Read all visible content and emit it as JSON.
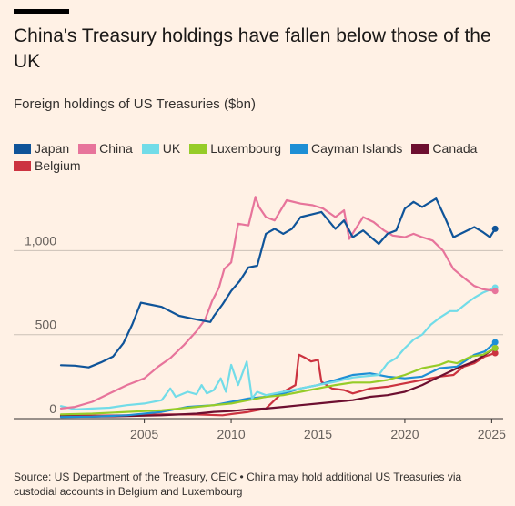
{
  "header": {
    "title": "China's Treasury holdings have fallen below those of the UK",
    "subtitle": "Foreign holdings of US Treasuries ($bn)"
  },
  "footer": {
    "source": "Source: US Department of the Treasury, CEIC • China may hold additional US Treasuries via custodial accounts in Belgium and Luxembourg"
  },
  "chart_data": {
    "type": "line",
    "title": "China's Treasury holdings have fallen below those of the UK",
    "subtitle": "Foreign holdings of US Treasuries ($bn)",
    "xlabel": "",
    "ylabel": "",
    "xlim": [
      2000.2,
      2025.4
    ],
    "ylim": [
      0,
      1300
    ],
    "xticks": [
      2005,
      2010,
      2015,
      2020,
      2025
    ],
    "yticks": [
      0,
      500,
      1000
    ],
    "ytick_labels": [
      "0",
      "500",
      "1,000"
    ],
    "grid": "horizontal",
    "legend_position": "top",
    "series": [
      {
        "name": "Japan",
        "color": "#0f5499",
        "points": [
          [
            2000.2,
            318
          ],
          [
            2001.0,
            315
          ],
          [
            2001.8,
            305
          ],
          [
            2002.5,
            335
          ],
          [
            2003.2,
            370
          ],
          [
            2003.8,
            450
          ],
          [
            2004.3,
            560
          ],
          [
            2004.8,
            690
          ],
          [
            2005.3,
            680
          ],
          [
            2006.0,
            665
          ],
          [
            2007.0,
            612
          ],
          [
            2008.0,
            590
          ],
          [
            2008.8,
            575
          ],
          [
            2009.0,
            610
          ],
          [
            2009.5,
            680
          ],
          [
            2010.0,
            760
          ],
          [
            2010.5,
            820
          ],
          [
            2011.0,
            900
          ],
          [
            2011.5,
            910
          ],
          [
            2012.0,
            1100
          ],
          [
            2012.5,
            1130
          ],
          [
            2013.0,
            1100
          ],
          [
            2013.5,
            1130
          ],
          [
            2014.0,
            1200
          ],
          [
            2014.8,
            1220
          ],
          [
            2015.2,
            1230
          ],
          [
            2016.0,
            1130
          ],
          [
            2016.5,
            1180
          ],
          [
            2017.0,
            1080
          ],
          [
            2017.6,
            1120
          ],
          [
            2018.5,
            1040
          ],
          [
            2019.0,
            1100
          ],
          [
            2019.5,
            1120
          ],
          [
            2020.0,
            1250
          ],
          [
            2020.5,
            1290
          ],
          [
            2021.0,
            1260
          ],
          [
            2021.8,
            1310
          ],
          [
            2022.3,
            1200
          ],
          [
            2022.8,
            1080
          ],
          [
            2023.4,
            1110
          ],
          [
            2024.0,
            1140
          ],
          [
            2024.5,
            1110
          ],
          [
            2024.9,
            1080
          ],
          [
            2025.2,
            1130
          ]
        ]
      },
      {
        "name": "China",
        "color": "#e7749b",
        "points": [
          [
            2000.2,
            60
          ],
          [
            2001.0,
            70
          ],
          [
            2002.0,
            100
          ],
          [
            2003.0,
            150
          ],
          [
            2004.0,
            200
          ],
          [
            2005.0,
            240
          ],
          [
            2005.8,
            310
          ],
          [
            2006.5,
            360
          ],
          [
            2007.3,
            440
          ],
          [
            2008.0,
            520
          ],
          [
            2008.5,
            590
          ],
          [
            2008.9,
            700
          ],
          [
            2009.3,
            780
          ],
          [
            2009.6,
            890
          ],
          [
            2010.0,
            930
          ],
          [
            2010.4,
            1160
          ],
          [
            2011.0,
            1150
          ],
          [
            2011.4,
            1320
          ],
          [
            2011.6,
            1260
          ],
          [
            2012.0,
            1200
          ],
          [
            2012.5,
            1180
          ],
          [
            2013.2,
            1300
          ],
          [
            2014.0,
            1280
          ],
          [
            2014.7,
            1270
          ],
          [
            2015.3,
            1250
          ],
          [
            2016.0,
            1200
          ],
          [
            2016.5,
            1240
          ],
          [
            2016.8,
            1070
          ],
          [
            2017.6,
            1200
          ],
          [
            2018.2,
            1170
          ],
          [
            2018.8,
            1120
          ],
          [
            2019.3,
            1090
          ],
          [
            2020.0,
            1080
          ],
          [
            2020.5,
            1100
          ],
          [
            2021.0,
            1080
          ],
          [
            2021.6,
            1060
          ],
          [
            2022.2,
            1000
          ],
          [
            2022.8,
            890
          ],
          [
            2023.5,
            830
          ],
          [
            2024.0,
            790
          ],
          [
            2024.5,
            770
          ],
          [
            2025.2,
            760
          ]
        ]
      },
      {
        "name": "UK",
        "color": "#72dce8",
        "points": [
          [
            2000.2,
            75
          ],
          [
            2001.0,
            55
          ],
          [
            2002.0,
            60
          ],
          [
            2003.0,
            65
          ],
          [
            2004.0,
            80
          ],
          [
            2005.0,
            90
          ],
          [
            2006.0,
            110
          ],
          [
            2006.5,
            180
          ],
          [
            2006.8,
            130
          ],
          [
            2007.5,
            160
          ],
          [
            2008.0,
            145
          ],
          [
            2008.3,
            200
          ],
          [
            2008.6,
            150
          ],
          [
            2009.0,
            170
          ],
          [
            2009.4,
            240
          ],
          [
            2009.7,
            160
          ],
          [
            2010.0,
            320
          ],
          [
            2010.4,
            200
          ],
          [
            2010.9,
            340
          ],
          [
            2011.2,
            120
          ],
          [
            2011.5,
            160
          ],
          [
            2012.0,
            140
          ],
          [
            2013.0,
            160
          ],
          [
            2014.0,
            180
          ],
          [
            2015.0,
            200
          ],
          [
            2016.0,
            220
          ],
          [
            2017.0,
            245
          ],
          [
            2017.5,
            250
          ],
          [
            2018.5,
            260
          ],
          [
            2019.0,
            330
          ],
          [
            2019.5,
            360
          ],
          [
            2020.0,
            420
          ],
          [
            2020.5,
            470
          ],
          [
            2021.0,
            500
          ],
          [
            2021.5,
            560
          ],
          [
            2022.0,
            600
          ],
          [
            2022.6,
            640
          ],
          [
            2023.0,
            640
          ],
          [
            2023.6,
            690
          ],
          [
            2024.0,
            720
          ],
          [
            2024.5,
            750
          ],
          [
            2025.2,
            780
          ]
        ]
      },
      {
        "name": "Luxembourg",
        "color": "#96cc28",
        "points": [
          [
            2000.2,
            25
          ],
          [
            2002.0,
            30
          ],
          [
            2004.0,
            40
          ],
          [
            2006.0,
            50
          ],
          [
            2008.0,
            70
          ],
          [
            2009.0,
            80
          ],
          [
            2010.0,
            90
          ],
          [
            2011.0,
            110
          ],
          [
            2012.0,
            130
          ],
          [
            2013.0,
            140
          ],
          [
            2014.0,
            160
          ],
          [
            2015.0,
            180
          ],
          [
            2016.0,
            200
          ],
          [
            2017.0,
            215
          ],
          [
            2018.0,
            215
          ],
          [
            2019.0,
            230
          ],
          [
            2020.0,
            260
          ],
          [
            2021.0,
            300
          ],
          [
            2022.0,
            320
          ],
          [
            2022.5,
            340
          ],
          [
            2023.0,
            330
          ],
          [
            2023.8,
            370
          ],
          [
            2024.5,
            380
          ],
          [
            2025.2,
            420
          ]
        ]
      },
      {
        "name": "Cayman Islands",
        "color": "#1e8fd5",
        "points": [
          [
            2000.2,
            10
          ],
          [
            2002.0,
            12
          ],
          [
            2004.0,
            20
          ],
          [
            2006.0,
            40
          ],
          [
            2007.5,
            70
          ],
          [
            2009.0,
            80
          ],
          [
            2010.0,
            100
          ],
          [
            2011.0,
            120
          ],
          [
            2012.0,
            130
          ],
          [
            2013.0,
            150
          ],
          [
            2014.0,
            180
          ],
          [
            2015.0,
            200
          ],
          [
            2016.0,
            230
          ],
          [
            2017.0,
            260
          ],
          [
            2018.0,
            270
          ],
          [
            2019.0,
            250
          ],
          [
            2020.0,
            240
          ],
          [
            2021.0,
            250
          ],
          [
            2022.0,
            300
          ],
          [
            2023.0,
            310
          ],
          [
            2024.0,
            380
          ],
          [
            2024.6,
            400
          ],
          [
            2025.2,
            455
          ]
        ]
      },
      {
        "name": "Canada",
        "color": "#6d0f30",
        "points": [
          [
            2000.2,
            15
          ],
          [
            2002.0,
            12
          ],
          [
            2004.0,
            15
          ],
          [
            2006.0,
            20
          ],
          [
            2008.0,
            30
          ],
          [
            2009.0,
            40
          ],
          [
            2010.0,
            45
          ],
          [
            2011.0,
            55
          ],
          [
            2012.0,
            60
          ],
          [
            2013.0,
            70
          ],
          [
            2014.0,
            80
          ],
          [
            2015.0,
            90
          ],
          [
            2016.0,
            100
          ],
          [
            2017.0,
            110
          ],
          [
            2018.0,
            130
          ],
          [
            2019.0,
            140
          ],
          [
            2020.0,
            160
          ],
          [
            2021.0,
            200
          ],
          [
            2022.0,
            250
          ],
          [
            2023.0,
            300
          ],
          [
            2024.0,
            340
          ],
          [
            2025.2,
            420
          ]
        ]
      },
      {
        "name": "Belgium",
        "color": "#cc3340",
        "points": [
          [
            2000.2,
            20
          ],
          [
            2002.0,
            18
          ],
          [
            2004.0,
            20
          ],
          [
            2006.0,
            25
          ],
          [
            2008.0,
            25
          ],
          [
            2009.5,
            20
          ],
          [
            2010.2,
            30
          ],
          [
            2011.0,
            40
          ],
          [
            2012.0,
            60
          ],
          [
            2013.0,
            160
          ],
          [
            2013.7,
            200
          ],
          [
            2013.9,
            380
          ],
          [
            2014.3,
            360
          ],
          [
            2014.6,
            340
          ],
          [
            2015.0,
            350
          ],
          [
            2015.2,
            220
          ],
          [
            2015.8,
            180
          ],
          [
            2016.5,
            170
          ],
          [
            2017.0,
            150
          ],
          [
            2018.0,
            180
          ],
          [
            2019.0,
            190
          ],
          [
            2020.0,
            210
          ],
          [
            2021.0,
            230
          ],
          [
            2022.0,
            250
          ],
          [
            2022.8,
            260
          ],
          [
            2023.4,
            310
          ],
          [
            2024.0,
            330
          ],
          [
            2024.6,
            370
          ],
          [
            2025.2,
            390
          ]
        ]
      }
    ]
  }
}
